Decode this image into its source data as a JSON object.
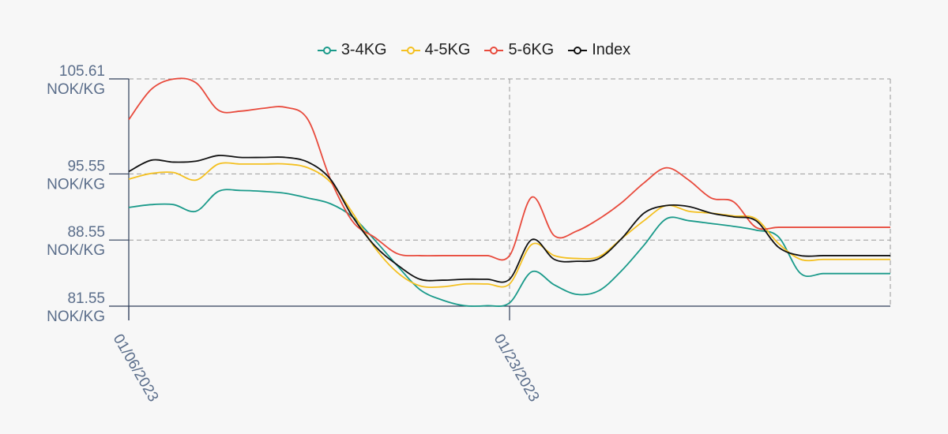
{
  "chart_data": {
    "type": "line",
    "x": [
      "01/06/2023",
      "01/07/2023",
      "01/08/2023",
      "01/09/2023",
      "01/10/2023",
      "01/11/2023",
      "01/12/2023",
      "01/13/2023",
      "01/14/2023",
      "01/15/2023",
      "01/16/2023",
      "01/17/2023",
      "01/18/2023",
      "01/19/2023",
      "01/20/2023",
      "01/21/2023",
      "01/22/2023",
      "01/23/2023",
      "01/24/2023",
      "01/25/2023",
      "01/26/2023",
      "01/27/2023",
      "01/28/2023",
      "01/29/2023",
      "01/30/2023",
      "01/31/2023",
      "02/01/2023",
      "02/02/2023",
      "02/03/2023",
      "02/04/2023",
      "02/05/2023",
      "02/06/2023",
      "02/07/2023",
      "02/08/2023",
      "02/09/2023"
    ],
    "x_ticks": [
      "01/06/2023",
      "01/23/2023"
    ],
    "y_ticks": [
      {
        "value": 81.55,
        "label": "81.55",
        "unit": "NOK/KG"
      },
      {
        "value": 88.55,
        "label": "88.55",
        "unit": "NOK/KG"
      },
      {
        "value": 95.55,
        "label": "95.55",
        "unit": "NOK/KG"
      },
      {
        "value": 105.61,
        "label": "105.61",
        "unit": "NOK/KG"
      }
    ],
    "ylim": [
      81.55,
      105.61
    ],
    "grid": true,
    "legend_position": "top-center",
    "series": [
      {
        "name": "3-4KG",
        "color": "#1a9a8a",
        "values": [
          92.0,
          92.3,
          92.3,
          91.6,
          93.7,
          93.8,
          93.7,
          93.5,
          93.0,
          92.4,
          91.0,
          88.5,
          85.8,
          83.3,
          82.2,
          81.6,
          81.6,
          81.9,
          85.2,
          83.8,
          82.8,
          83.2,
          85.3,
          88.0,
          90.8,
          90.6,
          90.3,
          90.0,
          89.6,
          88.9,
          85.0,
          85.0,
          85.0,
          85.0,
          85.0
        ]
      },
      {
        "name": "4-5KG",
        "color": "#f4c020",
        "values": [
          95.0,
          95.6,
          95.7,
          94.9,
          96.6,
          96.6,
          96.6,
          96.6,
          96.2,
          94.7,
          91.4,
          87.7,
          85.1,
          83.7,
          83.6,
          83.9,
          83.9,
          83.9,
          88.1,
          86.9,
          86.6,
          86.8,
          88.7,
          90.6,
          92.2,
          91.6,
          91.4,
          91.1,
          90.8,
          88.2,
          86.5,
          86.5,
          86.5,
          86.5,
          86.5
        ]
      },
      {
        "name": "5-6KG",
        "color": "#e84a3c",
        "values": [
          101.3,
          104.5,
          105.6,
          105.2,
          102.3,
          102.2,
          102.5,
          102.6,
          101.3,
          95.0,
          90.5,
          88.8,
          87.1,
          86.9,
          86.9,
          86.9,
          86.9,
          86.9,
          93.1,
          89.0,
          89.5,
          90.8,
          92.5,
          94.6,
          96.2,
          94.9,
          93.0,
          92.6,
          89.9,
          89.9,
          89.9,
          89.9,
          89.9,
          89.9,
          89.9
        ]
      },
      {
        "name": "Index",
        "color": "#111111",
        "values": [
          95.8,
          97.0,
          96.8,
          96.9,
          97.5,
          97.3,
          97.3,
          97.3,
          96.8,
          95.0,
          91.0,
          87.9,
          85.9,
          84.4,
          84.3,
          84.4,
          84.4,
          84.4,
          88.6,
          86.5,
          86.3,
          86.6,
          88.7,
          91.4,
          92.2,
          92.1,
          91.4,
          91.0,
          90.6,
          87.8,
          86.9,
          86.9,
          86.9,
          86.9,
          86.9
        ]
      }
    ]
  }
}
